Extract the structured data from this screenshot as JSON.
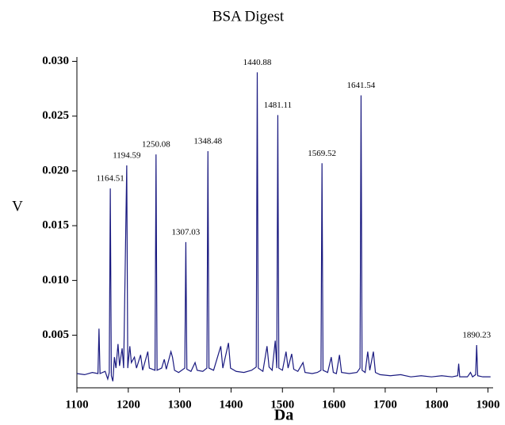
{
  "chart_data": {
    "type": "line",
    "title": "BSA Digest",
    "xlabel": "Da",
    "ylabel": "V",
    "color": "#1a1a80",
    "xlim": [
      1100,
      1910
    ],
    "ylim": [
      0.0002,
      0.0304
    ],
    "xticks": [
      1100,
      1200,
      1300,
      1400,
      1500,
      1600,
      1700,
      1800,
      1900
    ],
    "yticks": [
      {
        "value": 0.005,
        "label": "0.005"
      },
      {
        "value": 0.01,
        "label": "0.010"
      },
      0.015,
      {
        "value": 0.02,
        "label": "0.020"
      },
      0.025,
      {
        "value": 0.03,
        "label": "0.030"
      }
    ],
    "grid": false,
    "x": [
      1100,
      1115,
      1130,
      1141,
      1143,
      1145,
      1155,
      1160,
      1163,
      1165,
      1167,
      1170,
      1173,
      1176,
      1180,
      1183,
      1188,
      1191,
      1197,
      1199,
      1203,
      1206,
      1212,
      1216,
      1224,
      1228,
      1238,
      1241,
      1252,
      1254,
      1256,
      1265,
      1270,
      1274,
      1283,
      1286,
      1290,
      1298,
      1310,
      1312,
      1314,
      1322,
      1330,
      1334,
      1345,
      1353,
      1355,
      1357,
      1366,
      1380,
      1384,
      1395,
      1399,
      1410,
      1425,
      1440,
      1449,
      1451,
      1453,
      1462,
      1470,
      1474,
      1480,
      1486,
      1489,
      1491,
      1493,
      1500,
      1507,
      1511,
      1518,
      1522,
      1530,
      1540,
      1544,
      1558,
      1568,
      1575,
      1577,
      1579,
      1588,
      1595,
      1599,
      1605,
      1611,
      1615,
      1630,
      1645,
      1651,
      1653,
      1655,
      1661,
      1666,
      1670,
      1677,
      1681,
      1690,
      1710,
      1730,
      1750,
      1770,
      1790,
      1810,
      1830,
      1841,
      1843,
      1845,
      1860,
      1866,
      1870,
      1876,
      1878,
      1880,
      1890,
      1905
    ],
    "values": [
      0.0015,
      0.0014,
      0.0016,
      0.0015,
      0.0056,
      0.0015,
      0.0017,
      0.001,
      0.0016,
      0.0184,
      0.0013,
      0.0008,
      0.003,
      0.002,
      0.0042,
      0.0022,
      0.0038,
      0.002,
      0.0205,
      0.002,
      0.004,
      0.0025,
      0.003,
      0.002,
      0.0032,
      0.0018,
      0.0035,
      0.002,
      0.0018,
      0.0215,
      0.0018,
      0.002,
      0.0028,
      0.0019,
      0.0035,
      0.003,
      0.0018,
      0.0016,
      0.002,
      0.0135,
      0.0019,
      0.0017,
      0.0025,
      0.0018,
      0.0017,
      0.002,
      0.0218,
      0.002,
      0.0018,
      0.004,
      0.002,
      0.0043,
      0.002,
      0.0017,
      0.0016,
      0.0018,
      0.0021,
      0.029,
      0.002,
      0.0017,
      0.004,
      0.0021,
      0.0018,
      0.0045,
      0.002,
      0.0251,
      0.002,
      0.0018,
      0.0035,
      0.002,
      0.0033,
      0.0019,
      0.0017,
      0.0025,
      0.0016,
      0.0015,
      0.0016,
      0.0018,
      0.0207,
      0.0018,
      0.0016,
      0.003,
      0.0016,
      0.0015,
      0.0032,
      0.0016,
      0.0015,
      0.0016,
      0.002,
      0.0269,
      0.0018,
      0.0016,
      0.0035,
      0.0018,
      0.0035,
      0.0016,
      0.0014,
      0.0013,
      0.0014,
      0.0012,
      0.0013,
      0.0012,
      0.0013,
      0.0012,
      0.0013,
      0.0024,
      0.0012,
      0.0012,
      0.0016,
      0.0012,
      0.0014,
      0.0041,
      0.0013,
      0.0012,
      0.0012
    ],
    "annotations": [
      {
        "text": "1164.51",
        "x": 1165,
        "y": 0.0184
      },
      {
        "text": "1194.59",
        "x": 1197,
        "y": 0.0205
      },
      {
        "text": "1250.08",
        "x": 1254,
        "y": 0.0215
      },
      {
        "text": "1307.03",
        "x": 1312,
        "y": 0.0135
      },
      {
        "text": "1348.48",
        "x": 1355,
        "y": 0.0218
      },
      {
        "text": "1440.88",
        "x": 1451,
        "y": 0.029
      },
      {
        "text": "1481.11",
        "x": 1491,
        "y": 0.0251
      },
      {
        "text": "1569.52",
        "x": 1577,
        "y": 0.0207
      },
      {
        "text": "1641.54",
        "x": 1653,
        "y": 0.0269
      },
      {
        "text": "1890.23",
        "x": 1878,
        "y": 0.0041
      }
    ]
  }
}
